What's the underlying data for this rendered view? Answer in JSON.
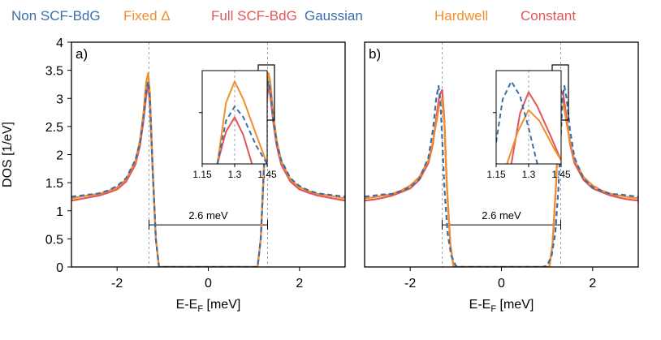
{
  "chart_data": [
    {
      "type": "line",
      "panel_label": "a)",
      "legend": [
        "Non SCF-BdG",
        "Fixed Δ",
        "Full SCF-BdG"
      ],
      "xlabel": "E-E",
      "xlabel_sub": "F",
      "xlabel_unit": " [meV]",
      "ylabel": "DOS [1/eV]",
      "xlim": [
        -3.0,
        3.0
      ],
      "ylim": [
        0,
        4
      ],
      "xticks": [
        -2,
        0,
        2
      ],
      "xtick_labels": [
        "-2",
        "0",
        "2"
      ],
      "yticks": [
        0,
        0.5,
        1,
        1.5,
        2,
        2.5,
        3,
        3.5,
        4
      ],
      "ytick_labels": [
        "0",
        "0.5",
        "1",
        "1.5",
        "2",
        "2.5",
        "3",
        "3.5",
        "4"
      ],
      "vlines": [
        -1.3,
        1.3
      ],
      "gap_annotation": {
        "label": "2.6 meV",
        "from": -1.3,
        "to": 1.3,
        "y": 0.75
      },
      "series": [
        {
          "name": "Full SCF-BdG",
          "color": "#e15759",
          "dash": "solid",
          "x": [
            -3.0,
            -2.8,
            -2.6,
            -2.4,
            -2.2,
            -2.0,
            -1.8,
            -1.6,
            -1.5,
            -1.42,
            -1.36,
            -1.32,
            -1.28,
            -1.22,
            -1.15,
            -1.08,
            1.08,
            1.15,
            1.22,
            1.28,
            1.32,
            1.36,
            1.42,
            1.5,
            1.6,
            1.8,
            2.0,
            2.2,
            2.4,
            2.6,
            2.8,
            3.0
          ],
          "y": [
            1.18,
            1.21,
            1.24,
            1.27,
            1.32,
            1.38,
            1.52,
            1.82,
            2.15,
            2.6,
            3.05,
            3.25,
            2.9,
            1.7,
            0.5,
            0.0,
            0.0,
            0.5,
            1.7,
            2.9,
            3.25,
            3.05,
            2.6,
            2.15,
            1.82,
            1.52,
            1.38,
            1.32,
            1.27,
            1.24,
            1.21,
            1.18
          ]
        },
        {
          "name": "Fixed Δ",
          "color": "#f28e2b",
          "dash": "solid",
          "x": [
            -3.0,
            -2.8,
            -2.6,
            -2.4,
            -2.2,
            -2.0,
            -1.8,
            -1.6,
            -1.5,
            -1.42,
            -1.36,
            -1.32,
            -1.28,
            -1.22,
            -1.15,
            -1.08,
            1.08,
            1.15,
            1.22,
            1.28,
            1.32,
            1.36,
            1.42,
            1.5,
            1.6,
            1.8,
            2.0,
            2.2,
            2.4,
            2.6,
            2.8,
            3.0
          ],
          "y": [
            1.22,
            1.25,
            1.28,
            1.3,
            1.35,
            1.42,
            1.56,
            1.88,
            2.25,
            2.75,
            3.3,
            3.45,
            3.1,
            1.8,
            0.5,
            0.0,
            0.0,
            0.5,
            1.8,
            3.1,
            3.45,
            3.3,
            2.75,
            2.25,
            1.88,
            1.56,
            1.42,
            1.35,
            1.3,
            1.28,
            1.25,
            1.22
          ]
        },
        {
          "name": "Non SCF-BdG",
          "color": "#3a6fa8",
          "dash": "6,4",
          "x": [
            -3.0,
            -2.8,
            -2.6,
            -2.4,
            -2.2,
            -2.0,
            -1.8,
            -1.6,
            -1.5,
            -1.42,
            -1.36,
            -1.32,
            -1.28,
            -1.22,
            -1.15,
            -1.08,
            1.08,
            1.15,
            1.22,
            1.28,
            1.32,
            1.36,
            1.42,
            1.5,
            1.6,
            1.8,
            2.0,
            2.2,
            2.4,
            2.6,
            2.8,
            3.0
          ],
          "y": [
            1.25,
            1.27,
            1.29,
            1.31,
            1.36,
            1.44,
            1.58,
            1.9,
            2.2,
            2.65,
            3.15,
            3.3,
            3.0,
            1.75,
            0.5,
            0.0,
            0.0,
            0.5,
            1.75,
            3.0,
            3.3,
            3.15,
            2.65,
            2.2,
            1.9,
            1.58,
            1.44,
            1.36,
            1.31,
            1.29,
            1.27,
            1.25
          ]
        }
      ],
      "inset": {
        "xlim": [
          1.15,
          1.45
        ],
        "ylim": [
          2.3,
          3.6
        ],
        "xticks": [
          1.15,
          1.3,
          1.45
        ],
        "xtick_labels": [
          "1.15",
          "1.3",
          "1.45"
        ],
        "series": [
          {
            "name": "Full SCF-BdG",
            "x": [
              1.22,
              1.26,
              1.3,
              1.34,
              1.38
            ],
            "y": [
              2.3,
              2.75,
              2.95,
              2.7,
              2.3
            ]
          },
          {
            "name": "Fixed Δ",
            "x": [
              1.22,
              1.26,
              1.3,
              1.34,
              1.4,
              1.45
            ],
            "y": [
              2.3,
              3.15,
              3.45,
              3.2,
              2.7,
              2.3
            ]
          },
          {
            "name": "Non SCF-BdG",
            "x": [
              1.22,
              1.26,
              1.3,
              1.34,
              1.4,
              1.45
            ],
            "y": [
              2.3,
              2.9,
              3.1,
              2.95,
              2.55,
              2.3
            ]
          }
        ]
      }
    },
    {
      "type": "line",
      "panel_label": "b)",
      "legend": [
        "Gaussian",
        "Hardwell",
        "Constant"
      ],
      "xlabel": "E-E",
      "xlabel_sub": "F",
      "xlabel_unit": " [meV]",
      "xlim": [
        -3.0,
        3.0
      ],
      "ylim": [
        0,
        4
      ],
      "xticks": [
        -2,
        0,
        2
      ],
      "xtick_labels": [
        "-2",
        "0",
        "2"
      ],
      "vlines": [
        -1.3,
        1.3
      ],
      "gap_annotation": {
        "label": "2.6 meV",
        "from": -1.3,
        "to": 1.3,
        "y": 0.75
      },
      "series": [
        {
          "name": "Constant",
          "color": "#e15759",
          "dash": "solid",
          "x": [
            -3.0,
            -2.8,
            -2.6,
            -2.4,
            -2.2,
            -2.0,
            -1.8,
            -1.6,
            -1.5,
            -1.42,
            -1.36,
            -1.3,
            -1.25,
            -1.2,
            -1.12,
            -1.05,
            1.05,
            1.12,
            1.2,
            1.25,
            1.3,
            1.36,
            1.42,
            1.5,
            1.6,
            1.8,
            2.0,
            2.2,
            2.4,
            2.6,
            2.8,
            3.0
          ],
          "y": [
            1.18,
            1.2,
            1.23,
            1.27,
            1.33,
            1.4,
            1.55,
            1.85,
            2.2,
            2.7,
            3.05,
            3.15,
            2.6,
            1.5,
            0.4,
            0.0,
            0.0,
            0.4,
            1.5,
            2.6,
            3.15,
            3.05,
            2.7,
            2.2,
            1.85,
            1.55,
            1.4,
            1.33,
            1.27,
            1.23,
            1.2,
            1.18
          ]
        },
        {
          "name": "Hardwell",
          "color": "#f28e2b",
          "dash": "solid",
          "x": [
            -3.0,
            -2.8,
            -2.6,
            -2.4,
            -2.2,
            -2.0,
            -1.8,
            -1.6,
            -1.5,
            -1.42,
            -1.36,
            -1.3,
            -1.25,
            -1.2,
            -1.12,
            -1.05,
            1.05,
            1.12,
            1.2,
            1.25,
            1.3,
            1.36,
            1.42,
            1.5,
            1.6,
            1.8,
            2.0,
            2.2,
            2.4,
            2.6,
            2.8,
            3.0
          ],
          "y": [
            1.22,
            1.24,
            1.27,
            1.3,
            1.36,
            1.45,
            1.6,
            1.9,
            2.25,
            2.6,
            2.9,
            3.0,
            2.55,
            1.5,
            0.4,
            0.0,
            0.0,
            0.4,
            1.5,
            2.55,
            3.0,
            2.9,
            2.6,
            2.25,
            1.9,
            1.6,
            1.45,
            1.36,
            1.3,
            1.27,
            1.24,
            1.22
          ]
        },
        {
          "name": "Gaussian",
          "color": "#3a6fa8",
          "dash": "6,4",
          "x": [
            -3.0,
            -2.8,
            -2.6,
            -2.4,
            -2.2,
            -2.0,
            -1.8,
            -1.6,
            -1.5,
            -1.43,
            -1.38,
            -1.34,
            -1.3,
            -1.25,
            -1.18,
            -1.1,
            -1.0,
            -0.9,
            0.9,
            1.0,
            1.1,
            1.18,
            1.25,
            1.3,
            1.34,
            1.38,
            1.43,
            1.5,
            1.6,
            1.8,
            2.0,
            2.2,
            2.4,
            2.6,
            2.8,
            3.0
          ],
          "y": [
            1.25,
            1.27,
            1.29,
            1.3,
            1.35,
            1.42,
            1.57,
            1.95,
            2.45,
            3.0,
            3.22,
            3.0,
            2.3,
            1.4,
            0.6,
            0.2,
            0.02,
            0.0,
            0.0,
            0.02,
            0.2,
            0.6,
            1.4,
            2.3,
            3.0,
            3.22,
            3.0,
            2.45,
            1.95,
            1.57,
            1.42,
            1.35,
            1.3,
            1.29,
            1.27,
            1.25
          ]
        }
      ],
      "inset": {
        "xlim": [
          1.15,
          1.45
        ],
        "ylim": [
          2.3,
          3.6
        ],
        "xticks": [
          1.15,
          1.3,
          1.45
        ],
        "xtick_labels": [
          "1.15",
          "1.3",
          "1.45"
        ],
        "series": [
          {
            "name": "Constant",
            "x": [
              1.22,
              1.26,
              1.3,
              1.34,
              1.4,
              1.45
            ],
            "y": [
              2.3,
              3.0,
              3.3,
              3.1,
              2.7,
              2.35
            ]
          },
          {
            "name": "Hardwell",
            "x": [
              1.2,
              1.25,
              1.3,
              1.35,
              1.42,
              1.45
            ],
            "y": [
              2.3,
              2.75,
              3.05,
              2.9,
              2.5,
              2.35
            ]
          },
          {
            "name": "Gaussian",
            "x": [
              1.15,
              1.18,
              1.22,
              1.26,
              1.3,
              1.34
            ],
            "y": [
              2.6,
              3.2,
              3.45,
              3.25,
              2.8,
              2.3
            ]
          }
        ]
      }
    }
  ]
}
